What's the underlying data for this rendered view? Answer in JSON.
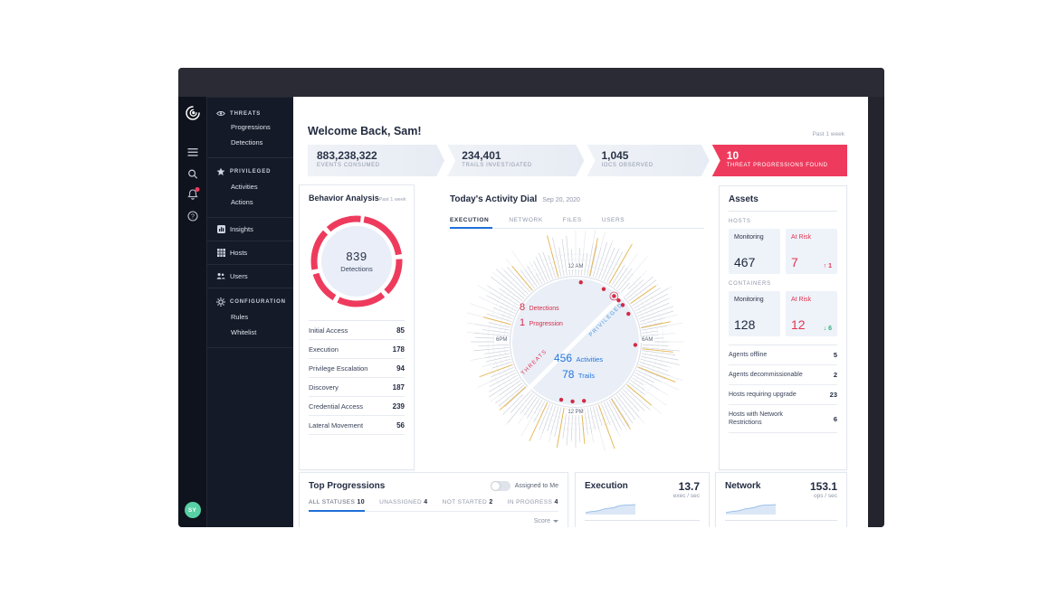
{
  "colors": {
    "red": "#ee3b5d",
    "blue": "#2276dd",
    "teal": "#56d0a4",
    "amber": "#e6b54c",
    "navy": "#2b3448"
  },
  "rail": {
    "avatar": "SY"
  },
  "nav": {
    "groups": [
      {
        "label": "THREATS",
        "items": [
          "Progressions",
          "Detections"
        ]
      },
      {
        "label": "PRIVILEGED",
        "items": [
          "Activities",
          "Actions"
        ]
      },
      {
        "label": "Insights"
      },
      {
        "label": "Hosts"
      },
      {
        "label": "Users"
      },
      {
        "label": "CONFIGURATION",
        "items": [
          "Rules",
          "Whitelist"
        ]
      }
    ]
  },
  "header": {
    "welcome": "Welcome Back, Sam!",
    "period": "Past 1 week"
  },
  "stats": {
    "items": [
      {
        "value": "883,238,322",
        "label": "EVENTS CONSUMED"
      },
      {
        "value": "234,401",
        "label": "TRAILS INVESTIGATED"
      },
      {
        "value": "1,045",
        "label": "IOCS OBSERVED"
      },
      {
        "value": "10",
        "label": "THREAT PROGRESSIONS FOUND"
      }
    ]
  },
  "behavior": {
    "title": "Behavior Analysis",
    "period": "Past 1 week",
    "donut_value": "839",
    "donut_label": "Detections",
    "rows": [
      {
        "label": "Initial Access",
        "value": "85"
      },
      {
        "label": "Execution",
        "value": "178"
      },
      {
        "label": "Privilege Escalation",
        "value": "94"
      },
      {
        "label": "Discovery",
        "value": "187"
      },
      {
        "label": "Credential Access",
        "value": "239"
      },
      {
        "label": "Lateral Movement",
        "value": "56"
      }
    ]
  },
  "dial": {
    "title": "Today's Activity Dial",
    "date": "Sep 20, 2020",
    "tabs": [
      {
        "label": "EXECUTION"
      },
      {
        "label": "NETWORK"
      },
      {
        "label": "FILES"
      },
      {
        "label": "USERS"
      }
    ],
    "detections_value": "8",
    "detections_label": "Detections",
    "progression_value": "1",
    "progression_label": "Progression",
    "activities_value": "456",
    "activities_label": "Activities",
    "trails_value": "78",
    "trails_label": "Trails",
    "threats_label": "THREATS",
    "privileged_label": "PRIVILEGED",
    "time_top": "12 AM",
    "time_right": "6AM",
    "time_bottom": "12 PM",
    "time_left": "6PM"
  },
  "assets": {
    "title": "Assets",
    "hosts_section": "HOSTS",
    "hosts_monitoring_label": "Monitoring",
    "hosts_monitoring_value": "467",
    "hosts_risk_label": "At Risk",
    "hosts_risk_value": "7",
    "hosts_risk_delta": "1",
    "containers_section": "CONTAINERS",
    "containers_monitoring_label": "Monitoring",
    "containers_monitoring_value": "128",
    "containers_risk_label": "At Risk",
    "containers_risk_value": "12",
    "containers_risk_delta": "6",
    "rows": [
      {
        "label": "Agents offline",
        "value": "5"
      },
      {
        "label": "Agents decommissionable",
        "value": "2"
      },
      {
        "label": "Hosts requiring upgrade",
        "value": "23"
      },
      {
        "label": "Hosts with Network Restrictions",
        "value": "6"
      }
    ]
  },
  "progressions": {
    "title": "Top Progressions",
    "toggle_label": "Assigned to Me",
    "tabs": [
      {
        "label": "ALL STATUSES",
        "count": "10"
      },
      {
        "label": "UNASSIGNED",
        "count": "4"
      },
      {
        "label": "NOT STARTED",
        "count": "2"
      },
      {
        "label": "IN PROGRESS",
        "count": "4"
      }
    ],
    "sort_label": "Score"
  },
  "metrics": [
    {
      "title": "Execution",
      "value": "13.7",
      "unit": "exec / sec"
    },
    {
      "title": "Network",
      "value": "153.1",
      "unit": "ops / sec"
    }
  ]
}
